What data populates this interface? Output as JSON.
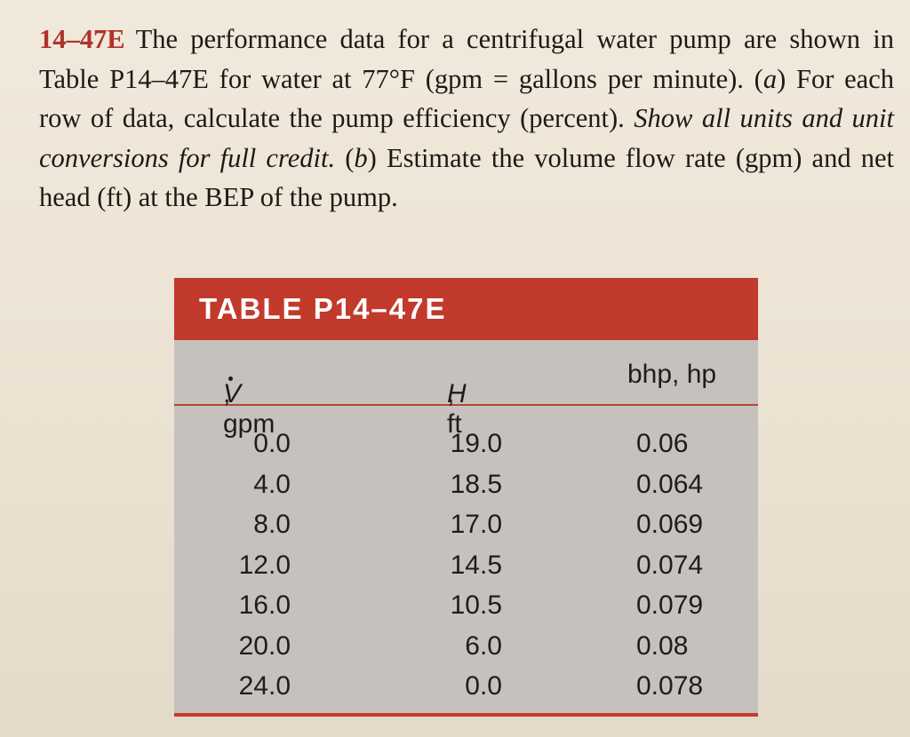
{
  "problem": {
    "number": "14–47E",
    "text_1": "The performance data for a centrifugal water pump are shown in Table P14–47E for water at 77°F (gpm = gallons per minute). (",
    "part_a_letter": "a",
    "text_2": ") For each row of data, calculate the pump efficiency (percent). ",
    "emphasis": "Show all units and unit conversions for full credit.",
    "text_3": " (",
    "part_b_letter": "b",
    "text_4": ") Estimate the volume flow rate (gpm) and net head (ft) at the BEP of the pump."
  },
  "table": {
    "title": "TABLE P14–47E",
    "headers": {
      "flow_symbol": "V",
      "flow_unit": ", gpm",
      "head_symbol": "H",
      "head_unit": ", ft",
      "bhp": "bhp, hp"
    },
    "rows": [
      {
        "flow": "0.0",
        "head": "19.0",
        "bhp": "0.06"
      },
      {
        "flow": "4.0",
        "head": "18.5",
        "bhp": "0.064"
      },
      {
        "flow": "8.0",
        "head": "17.0",
        "bhp": "0.069"
      },
      {
        "flow": "12.0",
        "head": "14.5",
        "bhp": "0.074"
      },
      {
        "flow": "16.0",
        "head": "10.5",
        "bhp": "0.079"
      },
      {
        "flow": "20.0",
        "head": "6.0",
        "bhp": "0.08"
      },
      {
        "flow": "24.0",
        "head": "0.0",
        "bhp": "0.078"
      }
    ]
  },
  "colors": {
    "accent_red": "#c13a2c",
    "table_gray": "#c7c1bd",
    "paper": "#ede5d7"
  }
}
